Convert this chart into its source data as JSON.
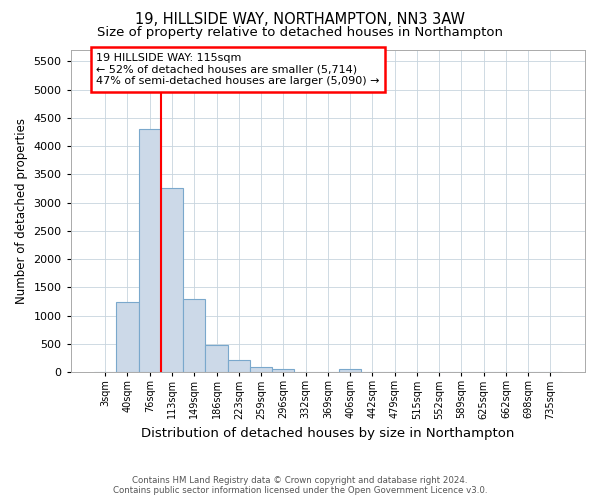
{
  "title_line1": "19, HILLSIDE WAY, NORTHAMPTON, NN3 3AW",
  "title_line2": "Size of property relative to detached houses in Northampton",
  "xlabel": "Distribution of detached houses by size in Northampton",
  "ylabel": "Number of detached properties",
  "bar_color": "#ccd9e8",
  "bar_edge_color": "#7aa8cc",
  "categories": [
    "3sqm",
    "40sqm",
    "76sqm",
    "113sqm",
    "149sqm",
    "186sqm",
    "223sqm",
    "259sqm",
    "296sqm",
    "332sqm",
    "369sqm",
    "406sqm",
    "442sqm",
    "479sqm",
    "515sqm",
    "552sqm",
    "589sqm",
    "625sqm",
    "662sqm",
    "698sqm",
    "735sqm"
  ],
  "values": [
    0,
    1250,
    4300,
    3250,
    1300,
    480,
    220,
    90,
    60,
    0,
    0,
    50,
    0,
    0,
    0,
    0,
    0,
    0,
    0,
    0,
    0
  ],
  "red_line_x": 2.5,
  "ylim": [
    0,
    5700
  ],
  "yticks": [
    0,
    500,
    1000,
    1500,
    2000,
    2500,
    3000,
    3500,
    4000,
    4500,
    5000,
    5500
  ],
  "annotation_text": "19 HILLSIDE WAY: 115sqm\n← 52% of detached houses are smaller (5,714)\n47% of semi-detached houses are larger (5,090) →",
  "footnote": "Contains HM Land Registry data © Crown copyright and database right 2024.\nContains public sector information licensed under the Open Government Licence v3.0.",
  "background_color": "#ffffff",
  "grid_color": "#c8d4de",
  "title_fontsize": 10.5,
  "subtitle_fontsize": 9.5,
  "tick_label_fontsize": 7,
  "ylabel_fontsize": 8.5,
  "xlabel_fontsize": 9.5,
  "footnote_fontsize": 6.2,
  "annot_fontsize": 8
}
